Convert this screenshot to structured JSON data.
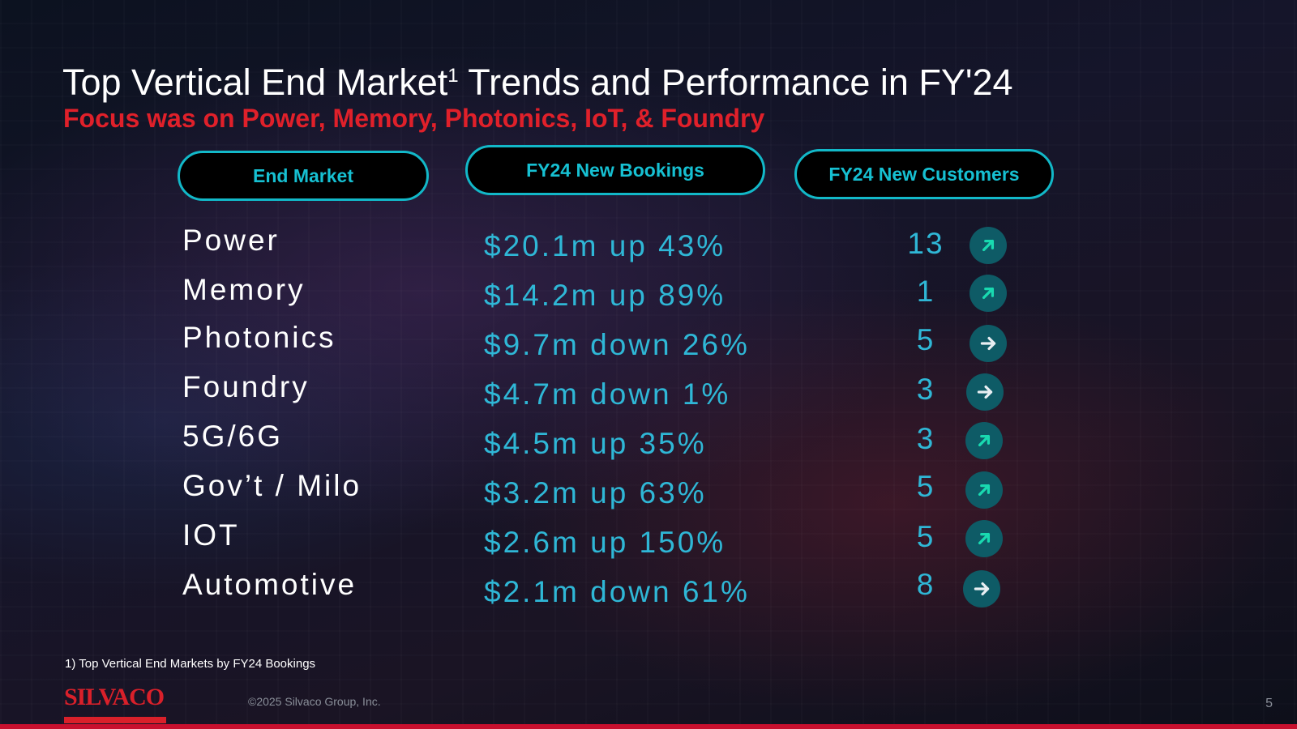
{
  "title": {
    "main": "Top Vertical End Market",
    "superscript": "1",
    "rest": " Trends and Performance in FY'24"
  },
  "subtitle": "Focus was on Power, Memory, Photonics, IoT, & Foundry",
  "headers": {
    "end_market": "End Market",
    "bookings": "FY24 New Bookings",
    "customers": "FY24 New Customers"
  },
  "rows": [
    {
      "market": "Power",
      "bookings": "$20.1m up 43%",
      "customers": "13",
      "trend": "up"
    },
    {
      "market": "Memory",
      "bookings": "$14.2m up 89%",
      "customers": "1",
      "trend": "up"
    },
    {
      "market": "Photonics",
      "bookings": "$9.7m down 26%",
      "customers": "5",
      "trend": "flat"
    },
    {
      "market": "Foundry",
      "bookings": "$4.7m down 1%",
      "customers": "3",
      "trend": "flat"
    },
    {
      "market": "5G/6G",
      "bookings": "$4.5m up 35%",
      "customers": "3",
      "trend": "up"
    },
    {
      "market": "Gov’t / Milo",
      "bookings": "$3.2m up 63%",
      "customers": "5",
      "trend": "up"
    },
    {
      "market": "IOT",
      "bookings": "$2.6m up 150%",
      "customers": "5",
      "trend": "up"
    },
    {
      "market": "Automotive",
      "bookings": "$2.1m down 61%",
      "customers": "8",
      "trend": "flat"
    }
  ],
  "icons": {
    "up": "arrow-up-right-icon",
    "flat": "arrow-right-icon"
  },
  "colors": {
    "up_arrow": "#19d9b0",
    "flat_arrow": "#e8eef2",
    "accent": "#12b8c8",
    "brand": "#d9202a"
  },
  "footnote": "1)  Top Vertical End Markets by FY24 Bookings",
  "logo": "SILVACO",
  "copyright": "©2025 Silvaco Group, Inc.",
  "page_number": "5"
}
